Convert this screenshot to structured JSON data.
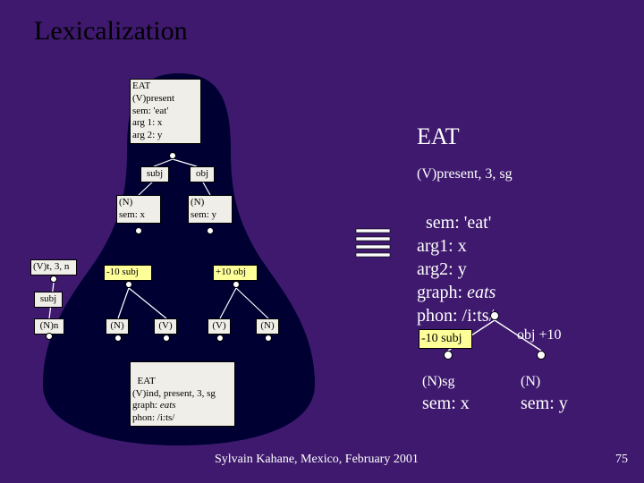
{
  "colors": {
    "bg": "#3e196e",
    "blob": "#000033",
    "white": "#ffffff",
    "black": "#000000",
    "box_bg": "#f0eee8",
    "highlight": "#ffff99",
    "line": "#ffffff"
  },
  "title": "Lexicalization",
  "footer": "Sylvain Kahane, Mexico, February 2001",
  "slide_num": "75",
  "left": {
    "eat_box": "EAT\n(V)present\nsem: 'eat'\narg 1: x\narg 2: y",
    "subj": "subj",
    "obj": "obj",
    "n_x": "(N)\nsem: x",
    "n_y": "(N)\nsem: y",
    "vt3n": "(V)t, 3, n",
    "subj2": "subj",
    "n_n": "(N)n",
    "minus10subj": "-10 subj",
    "plus10obj": "+10 obj",
    "n1": "(N)",
    "v1": "(V)",
    "v2": "(V)",
    "n2": "(N)",
    "eat_result": "EAT\n(V)ind, present, 3, sg\ngraph: eats\nphon: /i:ts/"
  },
  "right": {
    "eat_head": "EAT",
    "line2": "(V)present, 3, sg",
    "sem_block": "sem: 'eat'\narg1: x\narg2: y\ngraph: eats\nphon: /i:ts/",
    "minus10subj": "-10 subj",
    "objplus10": "obj +10",
    "n_sg": "(N)sg",
    "n_plain": "(N)",
    "semx": "sem: x",
    "semy": "sem: y"
  },
  "sem_italic_words": [
    "eats"
  ]
}
